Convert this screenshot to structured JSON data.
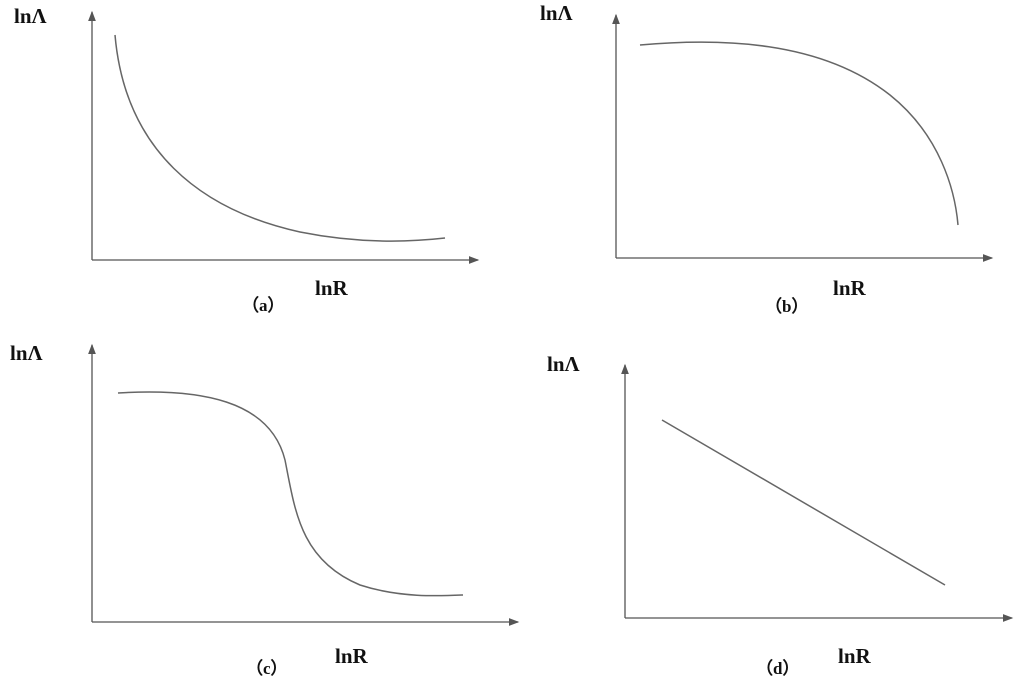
{
  "panels": [
    {
      "y_label": "lnΛ",
      "x_label": "lnR",
      "caption": "（a）"
    },
    {
      "y_label": "lnΛ",
      "x_label": "lnR",
      "caption": "（b）"
    },
    {
      "y_label": "lnΛ",
      "x_label": "lnR",
      "caption": "（c）"
    },
    {
      "y_label": "lnΛ",
      "x_label": "lnR",
      "caption": "（d）"
    }
  ]
}
